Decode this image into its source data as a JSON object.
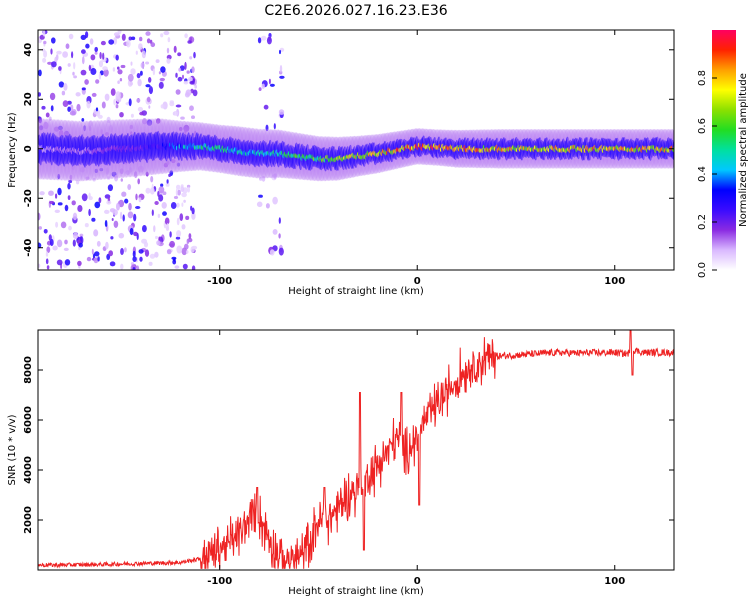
{
  "title": "C2E6.2026.027.16.23.E36",
  "chart_data": [
    {
      "type": "heatmap",
      "title": "C2E6.2026.027.16.23.E36",
      "xlabel": "Height of straight line (km)",
      "ylabel": "Frequency (Hz)",
      "xlim": [
        -192,
        130
      ],
      "ylim": [
        -49,
        48
      ],
      "xticks": [
        -100,
        0,
        100
      ],
      "yticks": [
        -40,
        -20,
        0,
        20,
        40
      ],
      "colorbar": {
        "label": "Normalized spectral amplitude",
        "range": [
          0,
          1
        ],
        "ticks": [
          "0.0",
          "0.2",
          "0.4",
          "0.6",
          "0.8"
        ],
        "tick_values": [
          0.0,
          0.2,
          0.4,
          0.6,
          0.8
        ],
        "colors": [
          "#ffffff",
          "#d9b8ff",
          "#8a2be2",
          "#3a0bff",
          "#0000ff",
          "#00c8ff",
          "#00e0a0",
          "#22dd22",
          "#8ce000",
          "#ffff00",
          "#ffa000",
          "#ff2200",
          "#ff0060"
        ]
      },
      "ridge": {
        "x": [
          -192,
          -170,
          -150,
          -130,
          -120,
          -110,
          -100,
          -90,
          -80,
          -70,
          -60,
          -50,
          -40,
          -30,
          -20,
          -10,
          0,
          10,
          20,
          40,
          60,
          80,
          100,
          130
        ],
        "y": [
          0,
          -1,
          0,
          1,
          1,
          1,
          0,
          -1,
          -2,
          -2,
          -3,
          -4,
          -4,
          -3,
          -2,
          -0.5,
          1,
          0.5,
          0,
          0,
          0,
          0,
          0,
          0
        ],
        "amplitude": [
          0.12,
          0.15,
          0.2,
          0.3,
          0.45,
          0.55,
          0.55,
          0.5,
          0.5,
          0.55,
          0.6,
          0.65,
          0.7,
          0.8,
          0.85,
          0.9,
          0.95,
          0.95,
          0.9,
          0.85,
          0.85,
          0.85,
          0.85,
          0.85
        ]
      },
      "scatter_regions": [
        {
          "x_range": [
            -192,
            -112
          ],
          "density": 0.9
        },
        {
          "x_range": [
            -80,
            -68
          ],
          "density": 0.5
        }
      ]
    },
    {
      "type": "line",
      "xlabel": "Height of straight line (km)",
      "ylabel": "SNR (10 * v/v)",
      "xlim": [
        -192,
        130
      ],
      "ylim": [
        0,
        9600
      ],
      "xticks": [
        -100,
        0,
        100
      ],
      "yticks": [
        2000,
        4000,
        6000,
        8000
      ],
      "series": [
        {
          "name": "SNR",
          "color": "#ee2222",
          "x": [
            -192,
            -180,
            -160,
            -140,
            -120,
            -110,
            -102,
            -95,
            -90,
            -86,
            -82,
            -78,
            -74,
            -70,
            -66,
            -62,
            -58,
            -54,
            -50,
            -46,
            -42,
            -38,
            -34,
            -30,
            -26,
            -22,
            -18,
            -14,
            -10,
            -6,
            -2,
            2,
            6,
            10,
            14,
            18,
            22,
            26,
            30,
            34,
            40,
            50,
            60,
            70,
            80,
            90,
            100,
            106,
            108,
            110,
            114,
            120,
            130
          ],
          "y": [
            200,
            200,
            220,
            260,
            300,
            450,
            800,
            1100,
            1400,
            1900,
            2500,
            1800,
            1200,
            500,
            350,
            500,
            500,
            1300,
            2000,
            2000,
            2300,
            2700,
            3000,
            3300,
            3600,
            4000,
            4400,
            4900,
            5300,
            4700,
            5100,
            5800,
            6200,
            6600,
            7000,
            7400,
            7800,
            8100,
            8300,
            8450,
            8550,
            8600,
            8650,
            8700,
            8680,
            8690,
            8700,
            8650,
            8700,
            8800,
            8700,
            8700,
            8700
          ]
        }
      ],
      "spikes": [
        {
          "x": -81,
          "y": 3300
        },
        {
          "x": -47,
          "y": 3300
        },
        {
          "x": -29,
          "y": 7100
        },
        {
          "x": -27,
          "y": 800
        },
        {
          "x": -8,
          "y": 7100
        },
        {
          "x": 1,
          "y": 2600
        },
        {
          "x": 108,
          "y": 9600
        },
        {
          "x": 109,
          "y": 7800
        }
      ]
    }
  ]
}
